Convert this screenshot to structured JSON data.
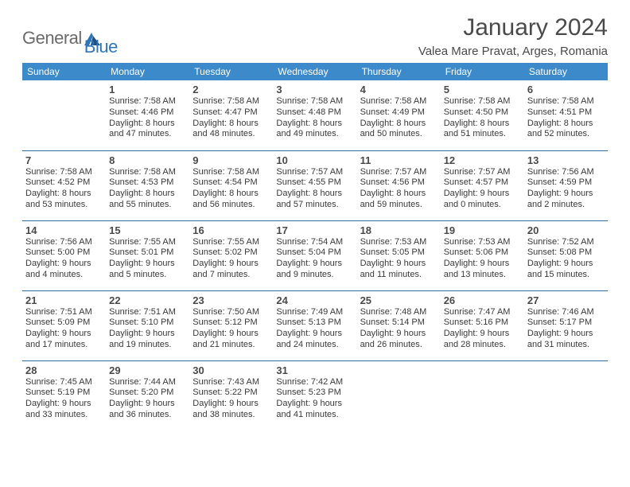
{
  "brand": {
    "part1": "General",
    "part2": "Blue"
  },
  "title": "January 2024",
  "location": "Valea Mare Pravat, Arges, Romania",
  "colors": {
    "header_bg": "#3c8ac9",
    "header_text": "#ffffff",
    "rule": "#2f6faa",
    "text": "#3a3a3a",
    "logo_gray": "#6b6b6b",
    "logo_blue": "#2f76b8",
    "page_bg": "#ffffff"
  },
  "weekdays": [
    "Sunday",
    "Monday",
    "Tuesday",
    "Wednesday",
    "Thursday",
    "Friday",
    "Saturday"
  ],
  "weeks": [
    [
      {},
      {
        "num": "1",
        "sunrise": "Sunrise: 7:58 AM",
        "sunset": "Sunset: 4:46 PM",
        "day1": "Daylight: 8 hours",
        "day2": "and 47 minutes."
      },
      {
        "num": "2",
        "sunrise": "Sunrise: 7:58 AM",
        "sunset": "Sunset: 4:47 PM",
        "day1": "Daylight: 8 hours",
        "day2": "and 48 minutes."
      },
      {
        "num": "3",
        "sunrise": "Sunrise: 7:58 AM",
        "sunset": "Sunset: 4:48 PM",
        "day1": "Daylight: 8 hours",
        "day2": "and 49 minutes."
      },
      {
        "num": "4",
        "sunrise": "Sunrise: 7:58 AM",
        "sunset": "Sunset: 4:49 PM",
        "day1": "Daylight: 8 hours",
        "day2": "and 50 minutes."
      },
      {
        "num": "5",
        "sunrise": "Sunrise: 7:58 AM",
        "sunset": "Sunset: 4:50 PM",
        "day1": "Daylight: 8 hours",
        "day2": "and 51 minutes."
      },
      {
        "num": "6",
        "sunrise": "Sunrise: 7:58 AM",
        "sunset": "Sunset: 4:51 PM",
        "day1": "Daylight: 8 hours",
        "day2": "and 52 minutes."
      }
    ],
    [
      {
        "num": "7",
        "sunrise": "Sunrise: 7:58 AM",
        "sunset": "Sunset: 4:52 PM",
        "day1": "Daylight: 8 hours",
        "day2": "and 53 minutes."
      },
      {
        "num": "8",
        "sunrise": "Sunrise: 7:58 AM",
        "sunset": "Sunset: 4:53 PM",
        "day1": "Daylight: 8 hours",
        "day2": "and 55 minutes."
      },
      {
        "num": "9",
        "sunrise": "Sunrise: 7:58 AM",
        "sunset": "Sunset: 4:54 PM",
        "day1": "Daylight: 8 hours",
        "day2": "and 56 minutes."
      },
      {
        "num": "10",
        "sunrise": "Sunrise: 7:57 AM",
        "sunset": "Sunset: 4:55 PM",
        "day1": "Daylight: 8 hours",
        "day2": "and 57 minutes."
      },
      {
        "num": "11",
        "sunrise": "Sunrise: 7:57 AM",
        "sunset": "Sunset: 4:56 PM",
        "day1": "Daylight: 8 hours",
        "day2": "and 59 minutes."
      },
      {
        "num": "12",
        "sunrise": "Sunrise: 7:57 AM",
        "sunset": "Sunset: 4:57 PM",
        "day1": "Daylight: 9 hours",
        "day2": "and 0 minutes."
      },
      {
        "num": "13",
        "sunrise": "Sunrise: 7:56 AM",
        "sunset": "Sunset: 4:59 PM",
        "day1": "Daylight: 9 hours",
        "day2": "and 2 minutes."
      }
    ],
    [
      {
        "num": "14",
        "sunrise": "Sunrise: 7:56 AM",
        "sunset": "Sunset: 5:00 PM",
        "day1": "Daylight: 9 hours",
        "day2": "and 4 minutes."
      },
      {
        "num": "15",
        "sunrise": "Sunrise: 7:55 AM",
        "sunset": "Sunset: 5:01 PM",
        "day1": "Daylight: 9 hours",
        "day2": "and 5 minutes."
      },
      {
        "num": "16",
        "sunrise": "Sunrise: 7:55 AM",
        "sunset": "Sunset: 5:02 PM",
        "day1": "Daylight: 9 hours",
        "day2": "and 7 minutes."
      },
      {
        "num": "17",
        "sunrise": "Sunrise: 7:54 AM",
        "sunset": "Sunset: 5:04 PM",
        "day1": "Daylight: 9 hours",
        "day2": "and 9 minutes."
      },
      {
        "num": "18",
        "sunrise": "Sunrise: 7:53 AM",
        "sunset": "Sunset: 5:05 PM",
        "day1": "Daylight: 9 hours",
        "day2": "and 11 minutes."
      },
      {
        "num": "19",
        "sunrise": "Sunrise: 7:53 AM",
        "sunset": "Sunset: 5:06 PM",
        "day1": "Daylight: 9 hours",
        "day2": "and 13 minutes."
      },
      {
        "num": "20",
        "sunrise": "Sunrise: 7:52 AM",
        "sunset": "Sunset: 5:08 PM",
        "day1": "Daylight: 9 hours",
        "day2": "and 15 minutes."
      }
    ],
    [
      {
        "num": "21",
        "sunrise": "Sunrise: 7:51 AM",
        "sunset": "Sunset: 5:09 PM",
        "day1": "Daylight: 9 hours",
        "day2": "and 17 minutes."
      },
      {
        "num": "22",
        "sunrise": "Sunrise: 7:51 AM",
        "sunset": "Sunset: 5:10 PM",
        "day1": "Daylight: 9 hours",
        "day2": "and 19 minutes."
      },
      {
        "num": "23",
        "sunrise": "Sunrise: 7:50 AM",
        "sunset": "Sunset: 5:12 PM",
        "day1": "Daylight: 9 hours",
        "day2": "and 21 minutes."
      },
      {
        "num": "24",
        "sunrise": "Sunrise: 7:49 AM",
        "sunset": "Sunset: 5:13 PM",
        "day1": "Daylight: 9 hours",
        "day2": "and 24 minutes."
      },
      {
        "num": "25",
        "sunrise": "Sunrise: 7:48 AM",
        "sunset": "Sunset: 5:14 PM",
        "day1": "Daylight: 9 hours",
        "day2": "and 26 minutes."
      },
      {
        "num": "26",
        "sunrise": "Sunrise: 7:47 AM",
        "sunset": "Sunset: 5:16 PM",
        "day1": "Daylight: 9 hours",
        "day2": "and 28 minutes."
      },
      {
        "num": "27",
        "sunrise": "Sunrise: 7:46 AM",
        "sunset": "Sunset: 5:17 PM",
        "day1": "Daylight: 9 hours",
        "day2": "and 31 minutes."
      }
    ],
    [
      {
        "num": "28",
        "sunrise": "Sunrise: 7:45 AM",
        "sunset": "Sunset: 5:19 PM",
        "day1": "Daylight: 9 hours",
        "day2": "and 33 minutes."
      },
      {
        "num": "29",
        "sunrise": "Sunrise: 7:44 AM",
        "sunset": "Sunset: 5:20 PM",
        "day1": "Daylight: 9 hours",
        "day2": "and 36 minutes."
      },
      {
        "num": "30",
        "sunrise": "Sunrise: 7:43 AM",
        "sunset": "Sunset: 5:22 PM",
        "day1": "Daylight: 9 hours",
        "day2": "and 38 minutes."
      },
      {
        "num": "31",
        "sunrise": "Sunrise: 7:42 AM",
        "sunset": "Sunset: 5:23 PM",
        "day1": "Daylight: 9 hours",
        "day2": "and 41 minutes."
      },
      {},
      {},
      {}
    ]
  ]
}
